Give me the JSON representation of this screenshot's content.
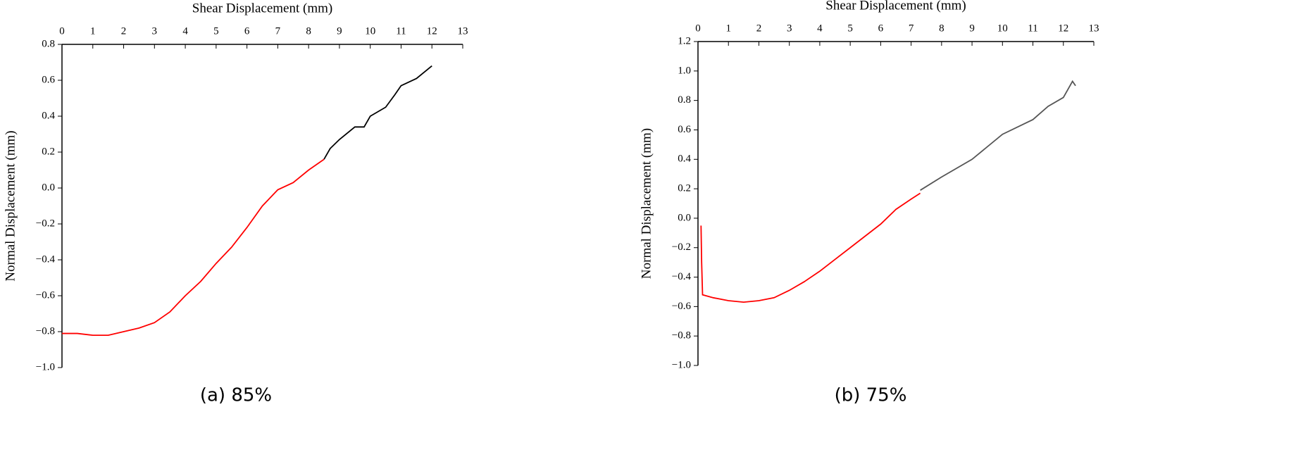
{
  "chart_data": [
    {
      "type": "line",
      "xlabel": "Shear Displacement (mm)",
      "ylabel": "Normal Displacement (mm)",
      "caption": "(a) 85%",
      "xlim": [
        0,
        13
      ],
      "xticks": [
        0,
        1,
        2,
        3,
        4,
        5,
        6,
        7,
        8,
        9,
        10,
        11,
        12,
        13
      ],
      "ylim": [
        -1.0,
        0.8
      ],
      "yticks": [
        {
          "value": -1.0,
          "label": "−1.0"
        },
        {
          "value": -0.8,
          "label": "−0.8"
        },
        {
          "value": -0.6,
          "label": "−0.6"
        },
        {
          "value": -0.4,
          "label": "−0.4"
        },
        {
          "value": -0.2,
          "label": "−0.2"
        },
        {
          "value": 0,
          "label": "0.0"
        },
        0.2,
        0.4,
        0.6,
        0.8
      ],
      "series": [
        {
          "color": "#ff0000",
          "x": [
            0,
            0.5,
            1,
            1.5,
            2,
            2.5,
            3,
            3.5,
            4,
            4.5,
            5,
            5.5,
            6,
            6.5,
            7,
            7.5,
            8,
            8.5
          ],
          "values": [
            -0.81,
            -0.81,
            -0.82,
            -0.82,
            -0.8,
            -0.78,
            -0.75,
            -0.69,
            -0.6,
            -0.52,
            -0.42,
            -0.33,
            -0.22,
            -0.1,
            -0.01,
            0.03,
            0.1,
            0.16
          ]
        },
        {
          "color": "#000000",
          "x": [
            8.5,
            8.7,
            9,
            9.5,
            9.8,
            10,
            10.5,
            10.8,
            11,
            11.5,
            12
          ],
          "values": [
            0.16,
            0.22,
            0.27,
            0.34,
            0.34,
            0.4,
            0.45,
            0.52,
            0.57,
            0.61,
            0.68
          ]
        }
      ]
    },
    {
      "type": "line",
      "xlabel": "Shear Displacement (mm)",
      "ylabel": "Normal Displacement (mm)",
      "caption": "(b) 75%",
      "xlim": [
        0,
        13
      ],
      "xticks": [
        0,
        1,
        2,
        3,
        4,
        5,
        6,
        7,
        8,
        9,
        10,
        11,
        12,
        13
      ],
      "ylim": [
        -1.0,
        1.2
      ],
      "yticks": [
        {
          "value": -1.0,
          "label": "−1.0"
        },
        {
          "value": -0.8,
          "label": "−0.8"
        },
        {
          "value": -0.6,
          "label": "−0.6"
        },
        {
          "value": -0.4,
          "label": "−0.4"
        },
        {
          "value": -0.2,
          "label": "−0.2"
        },
        {
          "value": 0,
          "label": "0.0"
        },
        0.2,
        0.4,
        0.6,
        0.8,
        {
          "value": 1.0,
          "label": "1.0"
        },
        1.2
      ],
      "series": [
        {
          "color": "#ff0000",
          "x": [
            0.1,
            0.12,
            0.15,
            0.5,
            1,
            1.5,
            2,
            2.5,
            3,
            3.5,
            4,
            4.5,
            5,
            5.5,
            6,
            6.5,
            7,
            7.3
          ],
          "values": [
            -0.05,
            -0.3,
            -0.52,
            -0.54,
            -0.56,
            -0.57,
            -0.56,
            -0.54,
            -0.49,
            -0.43,
            -0.36,
            -0.28,
            -0.2,
            -0.12,
            -0.04,
            0.06,
            0.13,
            0.17
          ]
        },
        {
          "color": "#555555",
          "x": [
            7.3,
            8,
            9,
            10,
            11,
            11.5,
            12,
            12.3,
            12.4
          ],
          "values": [
            0.19,
            0.28,
            0.4,
            0.57,
            0.67,
            0.76,
            0.82,
            0.93,
            0.9
          ]
        }
      ]
    }
  ]
}
